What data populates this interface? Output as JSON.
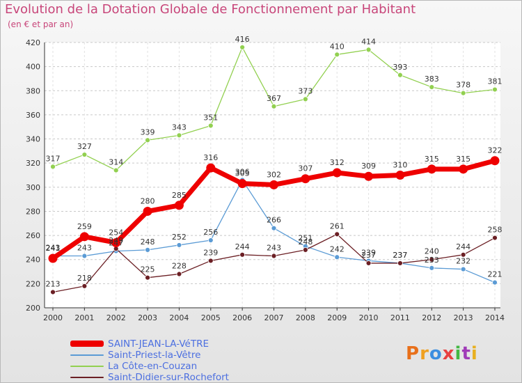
{
  "header": {
    "title": "Evolution de la Dotation Globale de Fonctionnement par Habitant",
    "subtitle": "(en € et par an)"
  },
  "logo": {
    "text": "Proxiti",
    "letter_colors": [
      "#e8701a",
      "#f0a020",
      "#3c8ee0",
      "#e84040",
      "#43b843",
      "#a03ab8",
      "#e8b020"
    ]
  },
  "chart_data": {
    "type": "line",
    "title": "Evolution de la Dotation Globale de Fonctionnement par Habitant",
    "subtitle": "(en € et par an)",
    "x": [
      "2000",
      "2001",
      "2002",
      "2003",
      "2004",
      "2005",
      "2006",
      "2007",
      "2008",
      "2009",
      "2010",
      "2011",
      "2012",
      "2013",
      "2014"
    ],
    "ylim": [
      200,
      420
    ],
    "yticks": [
      200,
      220,
      240,
      260,
      280,
      300,
      320,
      340,
      360,
      380,
      400,
      420
    ],
    "grid": "horizontal dashed",
    "legend_position": "bottom-left",
    "series": [
      {
        "name": "SAINT-JEAN-LA-VéTRE",
        "color": "#ee0000",
        "emphasis": true,
        "values": [
          241,
          259,
          254,
          280,
          285,
          316,
          303,
          302,
          307,
          312,
          309,
          310,
          315,
          315,
          322
        ]
      },
      {
        "name": "Saint-Priest-la-Vêtre",
        "color": "#5b9bd5",
        "emphasis": false,
        "values": [
          243,
          243,
          247,
          248,
          252,
          256,
          306,
          266,
          251,
          242,
          239,
          237,
          233,
          232,
          221
        ]
      },
      {
        "name": "La Côte-en-Couzan",
        "color": "#92d050",
        "emphasis": false,
        "values": [
          317,
          327,
          314,
          339,
          343,
          351,
          416,
          367,
          373,
          410,
          414,
          393,
          383,
          378,
          381
        ]
      },
      {
        "name": "Saint-Didier-sur-Rochefort",
        "color": "#6b1f24",
        "emphasis": false,
        "values": [
          213,
          218,
          249,
          225,
          228,
          239,
          244,
          243,
          248,
          261,
          237,
          237,
          240,
          244,
          258
        ]
      }
    ]
  }
}
